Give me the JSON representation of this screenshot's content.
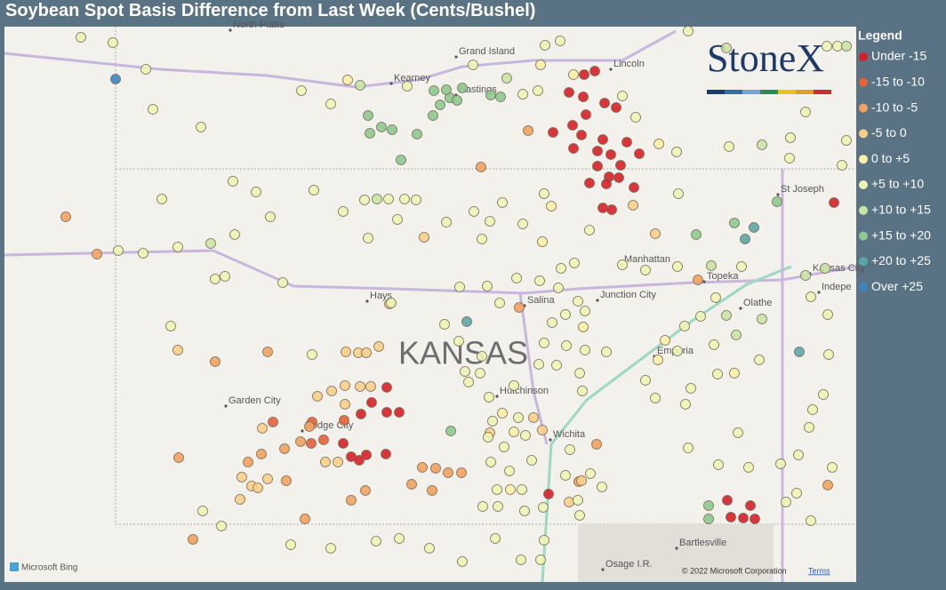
{
  "header": {
    "title": "Soybean Spot Basis Difference from Last Week (Cents/Bushel)"
  },
  "legend": {
    "title": "Legend",
    "items": [
      {
        "label": "Under -15",
        "color": "#d62027"
      },
      {
        "label": "-15 to -10",
        "color": "#e8603a"
      },
      {
        "label": "-10 to -5",
        "color": "#f2a25f"
      },
      {
        "label": "-5 to 0",
        "color": "#f9cf87"
      },
      {
        "label": "0 to +5",
        "color": "#fbf0a6"
      },
      {
        "label": "+5 to +10",
        "color": "#edf5b3"
      },
      {
        "label": "+10 to +15",
        "color": "#c8e4a4"
      },
      {
        "label": "+15 to +20",
        "color": "#8dca8e"
      },
      {
        "label": "+20 to +25",
        "color": "#5aa7a7"
      },
      {
        "label": "Over +25",
        "color": "#3b85c1"
      }
    ]
  },
  "map": {
    "places": [
      "North Platte",
      "Grand Island",
      "Kearney",
      "Hastings",
      "Lincoln",
      "St Joseph",
      "Manhattan",
      "Topeka",
      "Kansas City",
      "Indepe",
      "Olathe",
      "Hays",
      "Salina",
      "Junction City",
      "Emporia",
      "Garden City",
      "Dodge City",
      "Hutchinson",
      "Wichita",
      "Bartlesville",
      "Osage I.R."
    ],
    "state_label": "KANSAS",
    "logo": "StoneX",
    "attribution": "Microsoft Bing",
    "copyright": "© 2022 Microsoft Corporation",
    "terms": "Terms"
  }
}
